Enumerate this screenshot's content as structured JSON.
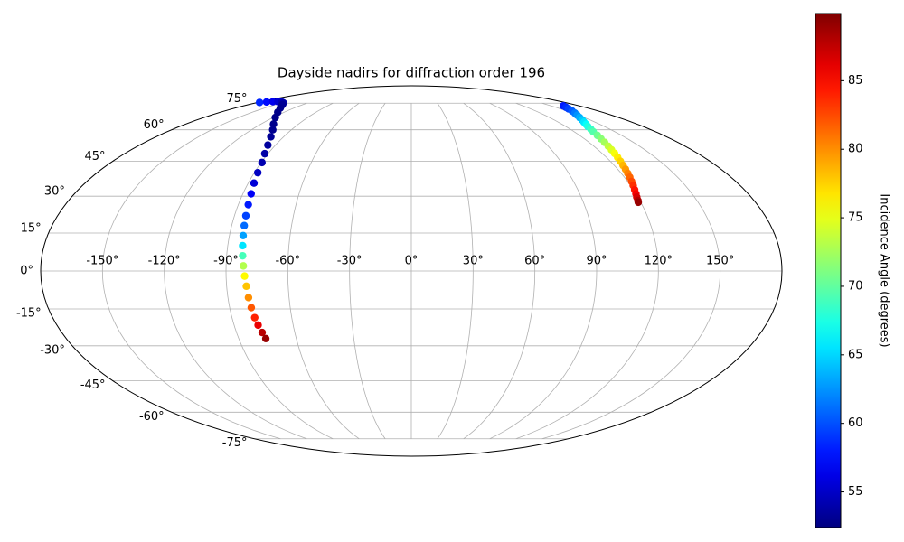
{
  "chart_data": {
    "type": "scatter",
    "projection": "mollweide",
    "title": "Dayside nadirs for diffraction order 196",
    "xlim": [
      -180,
      180
    ],
    "ylim": [
      -90,
      90
    ],
    "xticks": [
      {
        "value": -150,
        "label": "-150°"
      },
      {
        "value": -120,
        "label": "-120°"
      },
      {
        "value": -90,
        "label": "-90°"
      },
      {
        "value": -60,
        "label": "-60°"
      },
      {
        "value": -30,
        "label": "-30°"
      },
      {
        "value": 0,
        "label": "0°"
      },
      {
        "value": 30,
        "label": "30°"
      },
      {
        "value": 60,
        "label": "60°"
      },
      {
        "value": 90,
        "label": "90°"
      },
      {
        "value": 120,
        "label": "120°"
      },
      {
        "value": 150,
        "label": "150°"
      }
    ],
    "yticks": [
      {
        "value": -75,
        "label": "-75°"
      },
      {
        "value": -60,
        "label": "-60°"
      },
      {
        "value": -45,
        "label": "-45°"
      },
      {
        "value": -30,
        "label": "-30°"
      },
      {
        "value": -15,
        "label": "-15°"
      },
      {
        "value": 0,
        "label": "0°"
      },
      {
        "value": 15,
        "label": "15°"
      },
      {
        "value": 30,
        "label": "30°"
      },
      {
        "value": 45,
        "label": "45°"
      },
      {
        "value": 60,
        "label": "60°"
      },
      {
        "value": 75,
        "label": "75°"
      }
    ],
    "grid": true,
    "colormap": "jet",
    "colorbar": {
      "label": "Incidence Angle (degrees)",
      "clim": [
        52.4,
        89.9
      ],
      "ticks": [
        55,
        60,
        65,
        70,
        75,
        80,
        85
      ]
    },
    "series": [
      {
        "x": [
          -178,
          -172,
          -166,
          -160,
          -154,
          -148,
          -142,
          -134,
          -126,
          -118,
          -110,
          -104,
          -99,
          -95,
          -92,
          -89.5,
          -88,
          -86.8,
          -85.6,
          -84.8,
          -84.2,
          -83.7,
          -83.2,
          -82.7,
          -82.2,
          -81.6,
          -81,
          -80.4,
          -79.9,
          -79.3,
          -78.6,
          -77.8,
          -76.8,
          -75.9
        ],
        "y": [
          75.5,
          75.8,
          76,
          76,
          75.8,
          75.2,
          74,
          72,
          69.5,
          66.5,
          63,
          60,
          56.5,
          52.5,
          48.5,
          44.5,
          40,
          35.5,
          31,
          26.5,
          22,
          18,
          14,
          10,
          6,
          2,
          -2,
          -6,
          -10.5,
          -14.5,
          -18.5,
          -21.5,
          -24.5,
          -27
        ],
        "c": [
          58.5,
          57.5,
          56.5,
          55.5,
          54.5,
          53.8,
          53.2,
          52.9,
          52.8,
          52.8,
          52.9,
          53,
          53.2,
          53.5,
          53.8,
          54.2,
          54.8,
          55.6,
          56.8,
          58,
          59.5,
          61,
          63,
          65.5,
          69,
          73,
          76,
          78,
          80,
          82,
          84,
          86,
          87.8,
          89
        ]
      },
      {
        "x": [
          163,
          160.5,
          158,
          155,
          152,
          149,
          146,
          143.5,
          141,
          139,
          137,
          135.5,
          134,
          132.7,
          131.5,
          130.5,
          129.5,
          128.6,
          127.8,
          126.9,
          126,
          125.2,
          124.5,
          123.7,
          123,
          122.2,
          121.5,
          120.7,
          120,
          119.4,
          119,
          118.7
        ],
        "y": [
          73.3,
          72.4,
          71.5,
          70.2,
          69,
          67.8,
          66.5,
          65.2,
          64,
          62.8,
          61.7,
          60.3,
          59,
          57.2,
          55.5,
          53.8,
          52,
          50.3,
          48.6,
          46.8,
          45,
          43.2,
          41.5,
          39.7,
          38,
          36.2,
          34.5,
          32.7,
          31,
          29.6,
          28.2,
          27.5
        ],
        "c": [
          58,
          58.7,
          59.5,
          60.5,
          61.5,
          62.5,
          63.5,
          64.5,
          65.5,
          66.5,
          67.5,
          68.5,
          69.5,
          70.5,
          71.5,
          72.5,
          73.5,
          74.5,
          75.5,
          76.5,
          77.5,
          78.5,
          79.5,
          80.5,
          81.5,
          82.5,
          83.5,
          84.5,
          85.5,
          86.7,
          88,
          89
        ]
      }
    ]
  }
}
